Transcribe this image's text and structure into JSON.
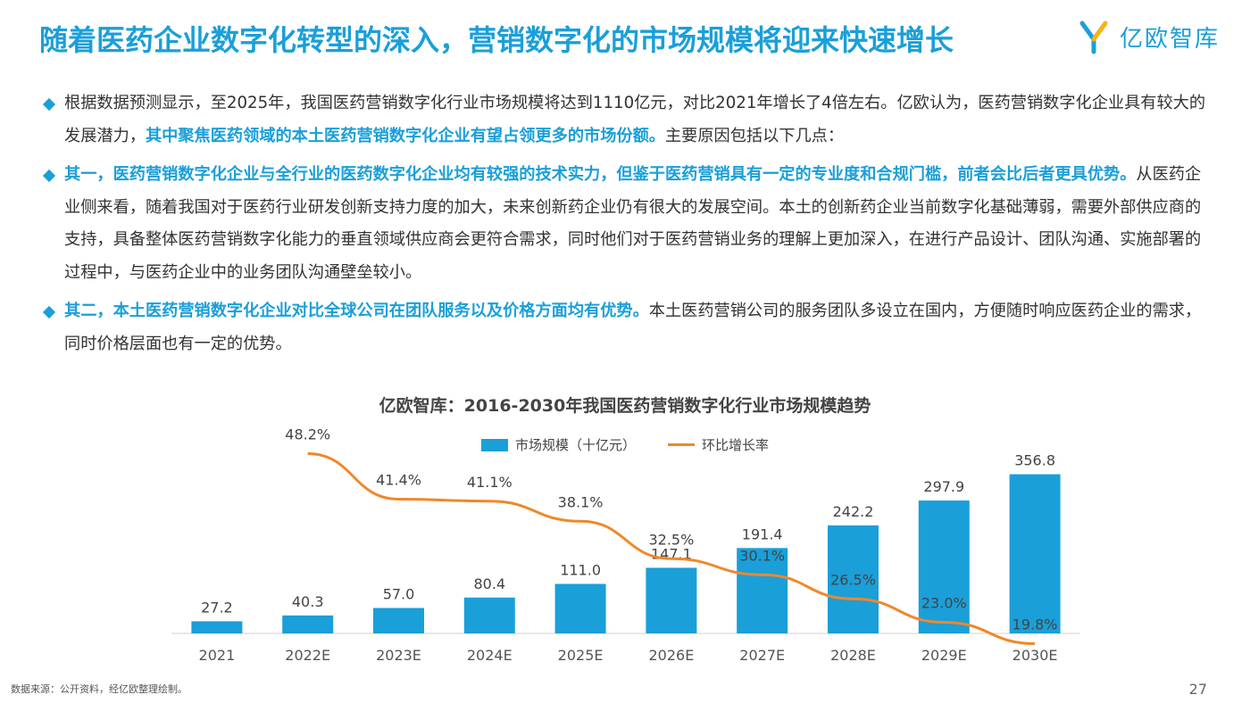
{
  "page": {
    "title": "随着医药企业数字化转型的深入，营销数字化的市场规模将迎来快速增长",
    "brand": "亿欧智库",
    "source": "数据来源：公开资料，经亿欧整理绘制。",
    "page_number": "27",
    "brand_color": "#1a9fd9"
  },
  "bullets": [
    {
      "parts": [
        {
          "text": "根据数据预测显示，至2025年，我国医药营销数字化行业市场规模将达到1110亿元，对比2021年增长了4倍左右。亿欧认为，医药营销数字化企业具有较大的发展潜力，",
          "bold": false
        },
        {
          "text": "其中聚焦医药领域的本土医药营销数字化企业有望占领更多的市场份额。",
          "bold": true
        },
        {
          "text": "主要原因包括以下几点：",
          "bold": false
        }
      ]
    },
    {
      "parts": [
        {
          "text": "其一，医药营销数字化企业与全行业的医药数字化企业均有较强的技术实力，但鉴于医药营销具有一定的专业度和合规门槛，前者会比后者更具优势。",
          "bold": true
        },
        {
          "text": "从医药企业侧来看，随着我国对于医药行业研发创新支持力度的加大，未来创新药企业仍有很大的发展空间。本土的创新药企业当前数字化基础薄弱，需要外部供应商的支持，具备整体医药营销数字化能力的垂直领域供应商会更符合需求，同时他们对于医药营销业务的理解上更加深入，在进行产品设计、团队沟通、实施部署的过程中，与医药企业中的业务团队沟通壁垒较小。",
          "bold": false
        }
      ]
    },
    {
      "parts": [
        {
          "text": "其二，本土医药营销数字化企业对比全球公司在团队服务以及价格方面均有优势。",
          "bold": true
        },
        {
          "text": "本土医药营销公司的服务团队多设立在国内，方便随时响应医药企业的需求，同时价格层面也有一定的优势。",
          "bold": false
        }
      ]
    }
  ],
  "chart_data": {
    "type": "bar",
    "title": "亿欧智库：2016-2030年我国医药营销数字化行业市场规模趋势",
    "categories": [
      "2021",
      "2022E",
      "2023E",
      "2024E",
      "2025E",
      "2026E",
      "2027E",
      "2028E",
      "2029E",
      "2030E"
    ],
    "series": [
      {
        "name": "市场规模（十亿元）",
        "type": "bar",
        "color": "#1a9fd9",
        "values": [
          27.2,
          40.3,
          57.0,
          80.4,
          111.0,
          147.1,
          191.4,
          242.2,
          297.9,
          356.8
        ],
        "labels": [
          "27.2",
          "40.3",
          "57.0",
          "80.4",
          "111.0",
          "147.1",
          "191.4",
          "242.2",
          "297.9",
          "356.8"
        ]
      },
      {
        "name": "环比增长率",
        "type": "line",
        "color": "#f0882a",
        "values": [
          null,
          48.2,
          41.4,
          41.1,
          38.1,
          32.5,
          30.1,
          26.5,
          23.0,
          19.8
        ],
        "labels": [
          null,
          "48.2%",
          "41.4%",
          "41.1%",
          "38.1%",
          "32.5%",
          "30.1%",
          "26.5%",
          "23.0%",
          "19.8%"
        ]
      }
    ],
    "bar_ylim": [
      0,
      360
    ],
    "line_ylim": [
      0,
      60
    ],
    "legend_position": "top",
    "grid": false
  }
}
